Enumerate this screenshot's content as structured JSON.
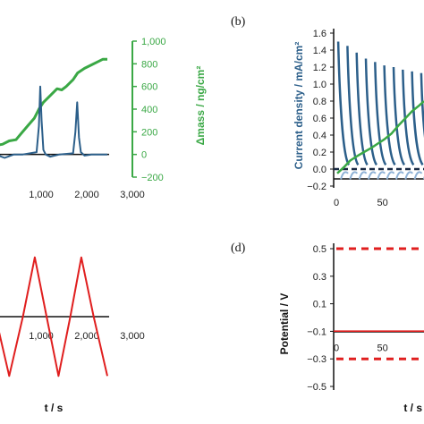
{
  "colors": {
    "current": "#2c5f8a",
    "current_light": "#8fb2d6",
    "mass": "#3aa845",
    "potential": "#e01f1f",
    "axis": "#111111"
  },
  "panels": {
    "a": {
      "label": ""
    },
    "b": {
      "label": "(b)"
    },
    "c": {
      "label": ""
    },
    "d": {
      "label": "(d)"
    }
  },
  "chart_data": [
    {
      "panel": "a",
      "type": "line",
      "xlabel": "",
      "x_ticks": [
        "1,000",
        "2,000",
        "3,000"
      ],
      "x_tick_values": [
        1000,
        2000,
        3000
      ],
      "xlim": [
        0,
        3000
      ],
      "ylabel_right": "Δmass / ng/cm²",
      "y_right_ticks": [
        "1,000",
        "800",
        "600",
        "400",
        "200",
        "0",
        "−200"
      ],
      "y_right_tick_values": [
        1000,
        800,
        600,
        400,
        200,
        0,
        -200
      ],
      "y_right_lim": [
        -200,
        1000
      ],
      "series": [
        {
          "name": "",
          "role": "current",
          "points": [
            [
              0,
              0
            ],
            [
              200,
              -30
            ],
            [
              400,
              0
            ],
            [
              600,
              0
            ],
            [
              900,
              20
            ],
            [
              950,
              250
            ],
            [
              980,
              600
            ],
            [
              1010,
              300
            ],
            [
              1050,
              40
            ],
            [
              1100,
              0
            ],
            [
              1200,
              -20
            ],
            [
              1400,
              0
            ],
            [
              1700,
              10
            ],
            [
              1750,
              200
            ],
            [
              1790,
              460
            ],
            [
              1830,
              150
            ],
            [
              1870,
              20
            ],
            [
              1950,
              -10
            ],
            [
              2100,
              0
            ],
            [
              2450,
              0
            ]
          ]
        },
        {
          "name": "",
          "role": "mass",
          "points": [
            [
              0,
              80
            ],
            [
              150,
              90
            ],
            [
              300,
              120
            ],
            [
              450,
              130
            ],
            [
              550,
              180
            ],
            [
              700,
              250
            ],
            [
              850,
              320
            ],
            [
              950,
              400
            ],
            [
              1050,
              460
            ],
            [
              1200,
              520
            ],
            [
              1350,
              580
            ],
            [
              1450,
              570
            ],
            [
              1550,
              600
            ],
            [
              1700,
              660
            ],
            [
              1800,
              720
            ],
            [
              1950,
              760
            ],
            [
              2100,
              790
            ],
            [
              2250,
              820
            ],
            [
              2350,
              840
            ],
            [
              2450,
              840
            ]
          ]
        }
      ]
    },
    {
      "panel": "b",
      "type": "line",
      "ylabel": "Current density / mA/cm²",
      "y_ticks": [
        "1.6",
        "1.4",
        "1.2",
        "1.0",
        "0.8",
        "0.6",
        "0.4",
        "0.2",
        "0.0",
        "−0.2"
      ],
      "y_tick_values": [
        1.6,
        1.4,
        1.2,
        1.0,
        0.8,
        0.6,
        0.4,
        0.2,
        0.0,
        -0.2
      ],
      "ylim": [
        -0.2,
        1.6
      ],
      "x_ticks": [
        "0",
        "50"
      ],
      "x_tick_values": [
        0,
        50
      ],
      "xlim": [
        0,
        95
      ],
      "series": [
        {
          "name": "",
          "role": "current",
          "peaks": [
            [
              2,
              1.5
            ],
            [
              12,
              1.45
            ],
            [
              22,
              1.37
            ],
            [
              32,
              1.3
            ],
            [
              42,
              1.26
            ],
            [
              52,
              1.22
            ],
            [
              62,
              1.2
            ],
            [
              72,
              1.17
            ],
            [
              82,
              1.15
            ],
            [
              92,
              1.13
            ]
          ]
        },
        {
          "name": "",
          "role": "mass",
          "points": [
            [
              1,
              -0.05
            ],
            [
              8,
              0.02
            ],
            [
              15,
              0.1
            ],
            [
              22,
              0.15
            ],
            [
              30,
              0.2
            ],
            [
              38,
              0.25
            ],
            [
              45,
              0.3
            ],
            [
              52,
              0.35
            ],
            [
              60,
              0.42
            ],
            [
              68,
              0.52
            ],
            [
              75,
              0.6
            ],
            [
              82,
              0.68
            ],
            [
              90,
              0.75
            ],
            [
              95,
              0.8
            ]
          ]
        }
      ]
    },
    {
      "panel": "c",
      "type": "line",
      "xlabel": "t / s",
      "x_ticks": [
        "1,000",
        "2,000",
        "3,000"
      ],
      "x_tick_values": [
        1000,
        2000,
        3000
      ],
      "xlim": [
        0,
        3000
      ],
      "ylim": [
        -1,
        1
      ],
      "series": [
        {
          "name": "",
          "role": "potential",
          "points": [
            [
              0,
              0
            ],
            [
              300,
              -0.85
            ],
            [
              600,
              0
            ],
            [
              860,
              0.85
            ],
            [
              1120,
              0
            ],
            [
              1380,
              -0.85
            ],
            [
              1640,
              0
            ],
            [
              1880,
              0.85
            ],
            [
              2150,
              0
            ],
            [
              2450,
              -0.85
            ]
          ]
        }
      ]
    },
    {
      "panel": "d",
      "type": "line",
      "xlabel": "t / s",
      "ylabel": "Potential / V",
      "y_ticks": [
        "0.5",
        "0.3",
        "0.1",
        "−0.1",
        "−0.3",
        "−0.5"
      ],
      "y_tick_values": [
        0.5,
        0.3,
        0.1,
        -0.1,
        -0.3,
        -0.5
      ],
      "ylim": [
        -0.5,
        0.5
      ],
      "x_ticks": [
        "0",
        "50"
      ],
      "x_tick_values": [
        0,
        50
      ],
      "xlim": [
        0,
        95
      ],
      "series": [
        {
          "name": "",
          "role": "limit",
          "y": 0.5
        },
        {
          "name": "",
          "role": "potential",
          "y": -0.1
        },
        {
          "name": "",
          "role": "limit",
          "y": -0.3
        }
      ]
    }
  ]
}
